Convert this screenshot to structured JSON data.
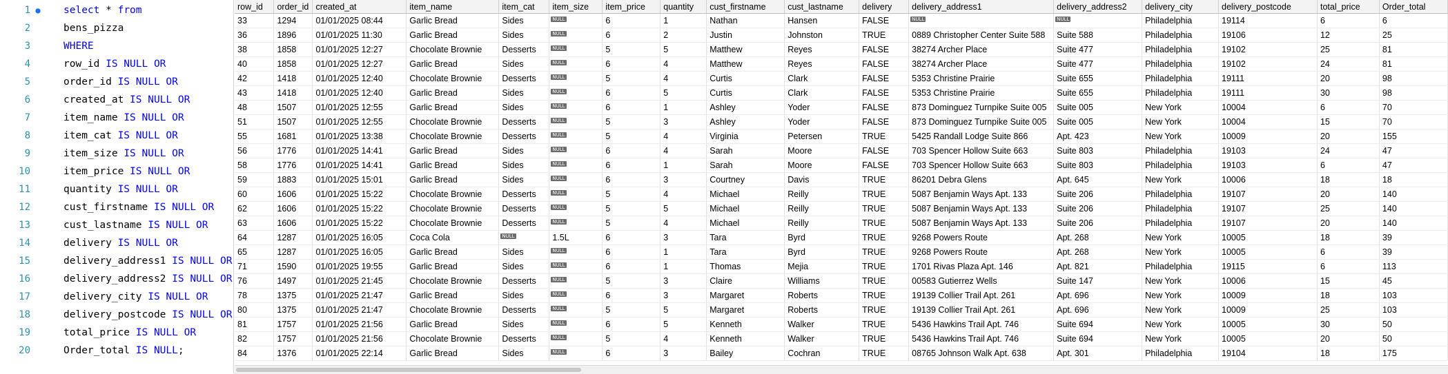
{
  "editor": {
    "lines": [
      {
        "num": "1",
        "parts": [
          [
            "kw",
            "select"
          ],
          [
            "",
            " * "
          ],
          [
            "kw",
            "from"
          ]
        ]
      },
      {
        "num": "2",
        "parts": [
          [
            "",
            "bens_pizza"
          ]
        ]
      },
      {
        "num": "3",
        "parts": [
          [
            "kw",
            "WHERE"
          ]
        ]
      },
      {
        "num": "4",
        "parts": [
          [
            "",
            "row_id "
          ],
          [
            "kw",
            "IS NULL OR"
          ]
        ]
      },
      {
        "num": "5",
        "parts": [
          [
            "",
            "order_id "
          ],
          [
            "kw",
            "IS NULL OR"
          ]
        ]
      },
      {
        "num": "6",
        "parts": [
          [
            "",
            "created_at "
          ],
          [
            "kw",
            "IS NULL OR"
          ]
        ]
      },
      {
        "num": "7",
        "parts": [
          [
            "",
            "item_name "
          ],
          [
            "kw",
            "IS NULL OR"
          ]
        ]
      },
      {
        "num": "8",
        "parts": [
          [
            "",
            "item_cat "
          ],
          [
            "kw",
            "IS NULL OR"
          ]
        ]
      },
      {
        "num": "9",
        "parts": [
          [
            "",
            "item_size "
          ],
          [
            "kw",
            "IS NULL OR"
          ]
        ]
      },
      {
        "num": "10",
        "parts": [
          [
            "",
            "item_price "
          ],
          [
            "kw",
            "IS NULL OR"
          ]
        ]
      },
      {
        "num": "11",
        "parts": [
          [
            "",
            "quantity "
          ],
          [
            "kw",
            "IS NULL OR"
          ]
        ]
      },
      {
        "num": "12",
        "parts": [
          [
            "",
            "cust_firstname "
          ],
          [
            "kw",
            "IS NULL OR"
          ]
        ]
      },
      {
        "num": "13",
        "parts": [
          [
            "",
            "cust_lastname "
          ],
          [
            "kw",
            "IS NULL OR"
          ]
        ]
      },
      {
        "num": "14",
        "parts": [
          [
            "",
            "delivery "
          ],
          [
            "kw",
            "IS NULL OR"
          ]
        ]
      },
      {
        "num": "15",
        "parts": [
          [
            "",
            "delivery_address1 "
          ],
          [
            "kw",
            "IS NULL OR"
          ]
        ]
      },
      {
        "num": "16",
        "parts": [
          [
            "",
            "delivery_address2 "
          ],
          [
            "kw",
            "IS NULL OR"
          ]
        ]
      },
      {
        "num": "17",
        "parts": [
          [
            "",
            "delivery_city "
          ],
          [
            "kw",
            "IS NULL OR"
          ]
        ]
      },
      {
        "num": "18",
        "parts": [
          [
            "",
            "delivery_postcode "
          ],
          [
            "kw",
            "IS NULL OR"
          ]
        ]
      },
      {
        "num": "19",
        "parts": [
          [
            "",
            "total_price "
          ],
          [
            "kw",
            "IS NULL OR"
          ]
        ]
      },
      {
        "num": "20",
        "parts": [
          [
            "",
            "Order_total "
          ],
          [
            "kw",
            "IS NULL"
          ],
          [
            "",
            ";"
          ]
        ]
      }
    ]
  },
  "grid": {
    "null_label": "NULL",
    "columns": [
      "row_id",
      "order_id",
      "created_at",
      "item_name",
      "item_cat",
      "item_size",
      "item_price",
      "quantity",
      "cust_firstname",
      "cust_lastname",
      "delivery",
      "delivery_address1",
      "delivery_address2",
      "delivery_city",
      "delivery_postcode",
      "total_price",
      "Order_total"
    ],
    "rows": [
      [
        "33",
        "1294",
        "01/01/2025 08:44",
        "Garlic Bread",
        "Sides",
        null,
        "6",
        "1",
        "Nathan",
        "Hansen",
        "FALSE",
        null,
        null,
        "Philadelphia",
        "19114",
        "6",
        "6"
      ],
      [
        "36",
        "1896",
        "01/01/2025 11:30",
        "Garlic Bread",
        "Sides",
        null,
        "6",
        "2",
        "Justin",
        "Johnston",
        "TRUE",
        "0889 Christopher Center Suite 588",
        "Suite 588",
        "Philadelphia",
        "19106",
        "12",
        "25"
      ],
      [
        "38",
        "1858",
        "01/01/2025 12:27",
        "Chocolate Brownie",
        "Desserts",
        null,
        "5",
        "5",
        "Matthew",
        "Reyes",
        "FALSE",
        "38274 Archer Place",
        "Suite 477",
        "Philadelphia",
        "19102",
        "25",
        "81"
      ],
      [
        "40",
        "1858",
        "01/01/2025 12:27",
        "Garlic Bread",
        "Sides",
        null,
        "6",
        "4",
        "Matthew",
        "Reyes",
        "FALSE",
        "38274 Archer Place",
        "Suite 477",
        "Philadelphia",
        "19102",
        "24",
        "81"
      ],
      [
        "42",
        "1418",
        "01/01/2025 12:40",
        "Chocolate Brownie",
        "Desserts",
        null,
        "5",
        "4",
        "Curtis",
        "Clark",
        "FALSE",
        "5353 Christine Prairie",
        "Suite 655",
        "Philadelphia",
        "19111",
        "20",
        "98"
      ],
      [
        "43",
        "1418",
        "01/01/2025 12:40",
        "Garlic Bread",
        "Sides",
        null,
        "6",
        "5",
        "Curtis",
        "Clark",
        "FALSE",
        "5353 Christine Prairie",
        "Suite 655",
        "Philadelphia",
        "19111",
        "30",
        "98"
      ],
      [
        "48",
        "1507",
        "01/01/2025 12:55",
        "Garlic Bread",
        "Sides",
        null,
        "6",
        "1",
        "Ashley",
        "Yoder",
        "FALSE",
        "873 Dominguez Turnpike Suite 005",
        "Suite 005",
        "New York",
        "10004",
        "6",
        "70"
      ],
      [
        "51",
        "1507",
        "01/01/2025 12:55",
        "Chocolate Brownie",
        "Desserts",
        null,
        "5",
        "3",
        "Ashley",
        "Yoder",
        "FALSE",
        "873 Dominguez Turnpike Suite 005",
        "Suite 005",
        "New York",
        "10004",
        "15",
        "70"
      ],
      [
        "55",
        "1681",
        "01/01/2025 13:38",
        "Chocolate Brownie",
        "Desserts",
        null,
        "5",
        "4",
        "Virginia",
        "Petersen",
        "TRUE",
        "5425 Randall Lodge Suite 866",
        "Apt. 423",
        "New York",
        "10009",
        "20",
        "155"
      ],
      [
        "56",
        "1776",
        "01/01/2025 14:41",
        "Garlic Bread",
        "Sides",
        null,
        "6",
        "4",
        "Sarah",
        "Moore",
        "FALSE",
        "703 Spencer Hollow Suite 663",
        "Suite 803",
        "Philadelphia",
        "19103",
        "24",
        "47"
      ],
      [
        "58",
        "1776",
        "01/01/2025 14:41",
        "Garlic Bread",
        "Sides",
        null,
        "6",
        "1",
        "Sarah",
        "Moore",
        "FALSE",
        "703 Spencer Hollow Suite 663",
        "Suite 803",
        "Philadelphia",
        "19103",
        "6",
        "47"
      ],
      [
        "59",
        "1883",
        "01/01/2025 15:01",
        "Garlic Bread",
        "Sides",
        null,
        "6",
        "3",
        "Courtney",
        "Davis",
        "TRUE",
        "86201 Debra Glens",
        "Apt. 645",
        "New York",
        "10006",
        "18",
        "18"
      ],
      [
        "60",
        "1606",
        "01/01/2025 15:22",
        "Chocolate Brownie",
        "Desserts",
        null,
        "5",
        "4",
        "Michael",
        "Reilly",
        "TRUE",
        "5087 Benjamin Ways Apt. 133",
        "Suite 206",
        "Philadelphia",
        "19107",
        "20",
        "140"
      ],
      [
        "62",
        "1606",
        "01/01/2025 15:22",
        "Chocolate Brownie",
        "Desserts",
        null,
        "5",
        "5",
        "Michael",
        "Reilly",
        "TRUE",
        "5087 Benjamin Ways Apt. 133",
        "Suite 206",
        "Philadelphia",
        "19107",
        "25",
        "140"
      ],
      [
        "63",
        "1606",
        "01/01/2025 15:22",
        "Chocolate Brownie",
        "Desserts",
        null,
        "5",
        "4",
        "Michael",
        "Reilly",
        "TRUE",
        "5087 Benjamin Ways Apt. 133",
        "Suite 206",
        "Philadelphia",
        "19107",
        "20",
        "140"
      ],
      [
        "64",
        "1287",
        "01/01/2025 16:05",
        "Coca Cola",
        null,
        "1.5L",
        "6",
        "3",
        "Tara",
        "Byrd",
        "TRUE",
        "9268 Powers Route",
        "Apt. 268",
        "New York",
        "10005",
        "18",
        "39"
      ],
      [
        "65",
        "1287",
        "01/01/2025 16:05",
        "Garlic Bread",
        "Sides",
        null,
        "6",
        "1",
        "Tara",
        "Byrd",
        "TRUE",
        "9268 Powers Route",
        "Apt. 268",
        "New York",
        "10005",
        "6",
        "39"
      ],
      [
        "71",
        "1590",
        "01/01/2025 19:55",
        "Garlic Bread",
        "Sides",
        null,
        "6",
        "1",
        "Thomas",
        "Mejia",
        "TRUE",
        "1701 Rivas Plaza Apt. 146",
        "Apt. 821",
        "Philadelphia",
        "19115",
        "6",
        "113"
      ],
      [
        "76",
        "1497",
        "01/01/2025 21:45",
        "Chocolate Brownie",
        "Desserts",
        null,
        "5",
        "3",
        "Claire",
        "Williams",
        "TRUE",
        "00583 Gutierrez Wells",
        "Suite 147",
        "New York",
        "10006",
        "15",
        "45"
      ],
      [
        "78",
        "1375",
        "01/01/2025 21:47",
        "Garlic Bread",
        "Sides",
        null,
        "6",
        "3",
        "Margaret",
        "Roberts",
        "TRUE",
        "19139 Collier Trail Apt. 261",
        "Apt. 696",
        "New York",
        "10009",
        "18",
        "103"
      ],
      [
        "80",
        "1375",
        "01/01/2025 21:47",
        "Chocolate Brownie",
        "Desserts",
        null,
        "5",
        "5",
        "Margaret",
        "Roberts",
        "TRUE",
        "19139 Collier Trail Apt. 261",
        "Apt. 696",
        "New York",
        "10009",
        "25",
        "103"
      ],
      [
        "81",
        "1757",
        "01/01/2025 21:56",
        "Garlic Bread",
        "Sides",
        null,
        "6",
        "5",
        "Kenneth",
        "Walker",
        "TRUE",
        "5436 Hawkins Trail Apt. 746",
        "Suite 694",
        "New York",
        "10005",
        "30",
        "50"
      ],
      [
        "82",
        "1757",
        "01/01/2025 21:56",
        "Chocolate Brownie",
        "Desserts",
        null,
        "5",
        "4",
        "Kenneth",
        "Walker",
        "TRUE",
        "5436 Hawkins Trail Apt. 746",
        "Suite 694",
        "New York",
        "10005",
        "20",
        "50"
      ],
      [
        "84",
        "1376",
        "01/01/2025 22:14",
        "Garlic Bread",
        "Sides",
        null,
        "6",
        "3",
        "Bailey",
        "Cochran",
        "TRUE",
        "08765 Johnson Walk Apt. 638",
        "Apt. 301",
        "Philadelphia",
        "19104",
        "18",
        "175"
      ]
    ]
  }
}
